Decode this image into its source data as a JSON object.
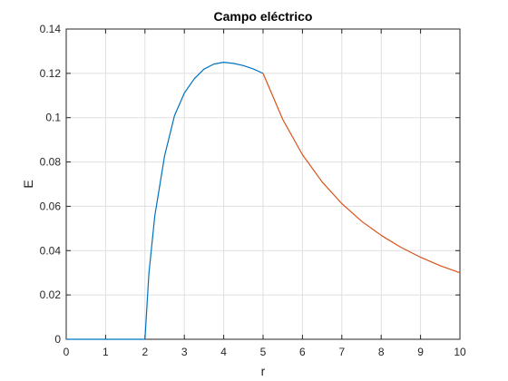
{
  "chart_data": {
    "type": "line",
    "title": "Campo eléctrico",
    "xlabel": "r",
    "ylabel": "E",
    "xlim": [
      0,
      10
    ],
    "ylim": [
      0,
      0.14
    ],
    "xticks": [
      0,
      1,
      2,
      3,
      4,
      5,
      6,
      7,
      8,
      9,
      10
    ],
    "yticks": [
      0,
      0.02,
      0.04,
      0.06,
      0.08,
      0.1,
      0.12,
      0.14
    ],
    "ytick_labels": [
      "0",
      "0.02",
      "0.04",
      "0.06",
      "0.08",
      "0.1",
      "0.12",
      "0.14"
    ],
    "grid": true,
    "legend": "none",
    "series": [
      {
        "color": "#0072BD",
        "x": [
          0,
          2,
          2.1,
          2.25,
          2.5,
          2.75,
          3,
          3.25,
          3.5,
          3.75,
          4,
          4.25,
          4.5,
          4.75,
          5
        ],
        "y": [
          0,
          0,
          0.0297,
          0.0557,
          0.0829,
          0.1009,
          0.1111,
          0.1175,
          0.1219,
          0.1242,
          0.125,
          0.1245,
          0.1235,
          0.122,
          0.12
        ]
      },
      {
        "color": "#D95319",
        "x": [
          5,
          5.5,
          6,
          6.5,
          7,
          7.5,
          8,
          8.5,
          9,
          9.5,
          10
        ],
        "y": [
          0.12,
          0.0992,
          0.0833,
          0.071,
          0.0612,
          0.0533,
          0.0469,
          0.0415,
          0.037,
          0.0332,
          0.03
        ]
      }
    ]
  }
}
